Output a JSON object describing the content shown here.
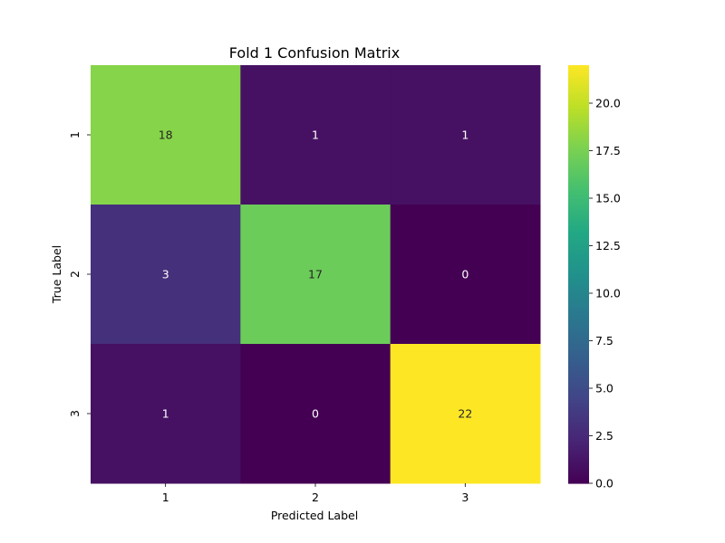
{
  "chart_data": {
    "type": "heatmap",
    "title": "Fold 1 Confusion Matrix",
    "xlabel": "Predicted Label",
    "ylabel": "True Label",
    "x_categories": [
      "1",
      "2",
      "3"
    ],
    "y_categories": [
      "1",
      "2",
      "3"
    ],
    "values": [
      [
        18,
        1,
        1
      ],
      [
        3,
        17,
        0
      ],
      [
        1,
        0,
        22
      ]
    ],
    "colormap": "viridis",
    "colorbar": {
      "range": [
        0,
        22
      ],
      "ticks": [
        0.0,
        2.5,
        5.0,
        7.5,
        10.0,
        12.5,
        15.0,
        17.5,
        20.0
      ],
      "tick_labels": [
        "0.0",
        "2.5",
        "5.0",
        "7.5",
        "10.0",
        "12.5",
        "15.0",
        "17.5",
        "20.0"
      ]
    },
    "annotations": true,
    "grid": false
  }
}
